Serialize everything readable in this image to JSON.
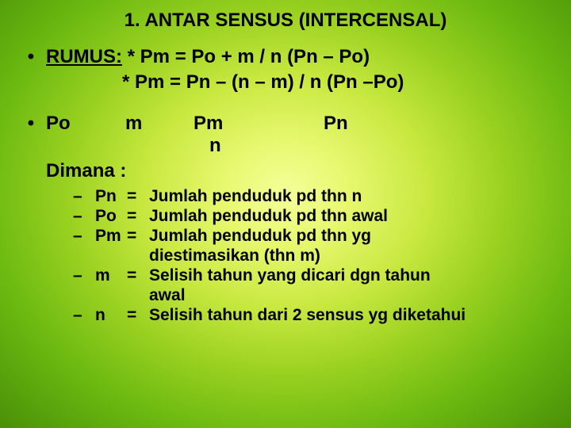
{
  "title": "1. ANTAR SENSUS (INTERCENSAL)",
  "rumus_label": "RUMUS:",
  "formula1_prefix": " * Pm = Po + m / n (Pn – Po)",
  "formula2": "* Pm = Pn – (n – m) / n (Pn –Po)",
  "vars": {
    "po": "Po",
    "m": "m",
    "pm": "Pm",
    "pn": "Pn",
    "n": "n"
  },
  "dimana": "Dimana :",
  "defs": [
    {
      "var": "Pn",
      "eq": "=",
      "text": "Jumlah penduduk pd thn n"
    },
    {
      "var": "Po",
      "eq": "=",
      "text": "Jumlah penduduk pd thn awal"
    },
    {
      "var": "Pm",
      "eq": "=",
      "text": "Jumlah penduduk pd thn yg"
    }
  ],
  "def_pm_cont": "diestimasikan (thn m)",
  "def_m": {
    "var": "m",
    "eq": "=",
    "text": "Selisih tahun yang dicari dgn tahun"
  },
  "def_m_cont": "awal",
  "def_n": {
    "var": "n",
    "eq": "=",
    "text": "Selisih tahun dari 2 sensus yg diketahui"
  },
  "colors": {
    "text": "#000000",
    "bg_center": "#f5ff9a",
    "bg_edge": "#4a9008"
  },
  "typography": {
    "title_fontsize": 24,
    "body_fontsize": 24,
    "def_fontsize": 21,
    "weight": "bold",
    "family": "Arial"
  }
}
